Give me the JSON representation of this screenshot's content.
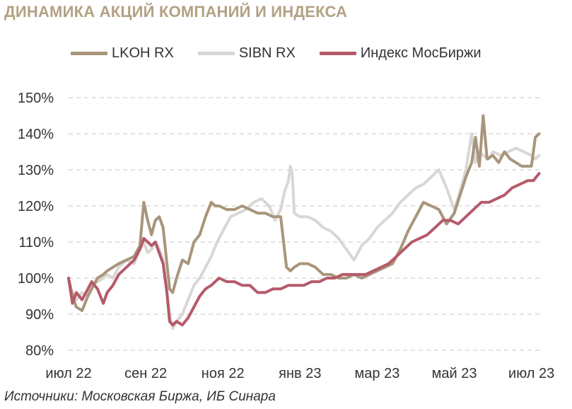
{
  "title": "ДИНАМИКА АКЦИЙ КОМПАНИЙ И ИНДЕКСА",
  "source": "Источники: Московская Биржа, ИБ Синара",
  "chart_data": {
    "type": "line",
    "ylim": [
      80,
      150
    ],
    "ytick_values": [
      80,
      90,
      100,
      110,
      120,
      130,
      140,
      150
    ],
    "ytick_labels": [
      "80%",
      "90%",
      "100%",
      "110%",
      "120%",
      "130%",
      "140%",
      "150%"
    ],
    "xlim": [
      0,
      12.3
    ],
    "xtick_positions": [
      0,
      2,
      4,
      6,
      8,
      10,
      12
    ],
    "xtick_labels": [
      "июл 22",
      "сен 22",
      "ноя 22",
      "янв 23",
      "мар 23",
      "май 23",
      "июл 23"
    ],
    "grid": true,
    "legend_position": "top",
    "series": [
      {
        "name": "LKOH RX",
        "color": "#a8957b",
        "x": [
          0,
          0.1,
          0.2,
          0.35,
          0.5,
          0.6,
          0.75,
          0.9,
          1.0,
          1.15,
          1.3,
          1.5,
          1.7,
          1.85,
          1.95,
          2.05,
          2.15,
          2.25,
          2.35,
          2.45,
          2.55,
          2.62,
          2.7,
          2.8,
          2.95,
          3.1,
          3.25,
          3.4,
          3.55,
          3.7,
          3.8,
          3.9,
          4.1,
          4.3,
          4.5,
          4.7,
          4.9,
          5.1,
          5.3,
          5.5,
          5.65,
          5.75,
          5.85,
          6.0,
          6.2,
          6.4,
          6.6,
          6.8,
          7.0,
          7.2,
          7.4,
          7.6,
          7.8,
          8.0,
          8.2,
          8.4,
          8.6,
          8.8,
          9.0,
          9.2,
          9.4,
          9.6,
          9.8,
          10.0,
          10.15,
          10.3,
          10.45,
          10.55,
          10.65,
          10.75,
          10.85,
          11.0,
          11.15,
          11.3,
          11.45,
          11.6,
          11.75,
          11.9,
          12.0,
          12.1,
          12.2
        ],
        "y": [
          100,
          95,
          92,
          91,
          95,
          97,
          100,
          101,
          102,
          103,
          104,
          105,
          106,
          109,
          121,
          116,
          112,
          116,
          117,
          114,
          104,
          97,
          96,
          100,
          105,
          104,
          110,
          112,
          117,
          121,
          120,
          120,
          119,
          119,
          120,
          119,
          118,
          118,
          117,
          117,
          103,
          102,
          103,
          104,
          104,
          103,
          101,
          101,
          100,
          100,
          101,
          100,
          101,
          102,
          103,
          104,
          108,
          113,
          117,
          121,
          120,
          119,
          115,
          118,
          123,
          128,
          132,
          139,
          131,
          145,
          133,
          134,
          132,
          135,
          133,
          132,
          131,
          131,
          131,
          139,
          140
        ]
      },
      {
        "name": "SIBN RX",
        "color": "#d9d7d3",
        "x": [
          0,
          0.1,
          0.2,
          0.35,
          0.5,
          0.6,
          0.75,
          0.9,
          1.0,
          1.15,
          1.3,
          1.5,
          1.7,
          1.85,
          1.95,
          2.05,
          2.15,
          2.25,
          2.35,
          2.45,
          2.55,
          2.62,
          2.7,
          2.8,
          2.95,
          3.1,
          3.25,
          3.4,
          3.55,
          3.7,
          3.85,
          4.0,
          4.2,
          4.4,
          4.6,
          4.8,
          5.0,
          5.2,
          5.35,
          5.5,
          5.6,
          5.7,
          5.75,
          5.8,
          5.85,
          6.0,
          6.2,
          6.4,
          6.6,
          6.8,
          7.0,
          7.2,
          7.4,
          7.6,
          7.8,
          8.0,
          8.2,
          8.4,
          8.6,
          8.8,
          9.0,
          9.2,
          9.4,
          9.6,
          9.8,
          10.0,
          10.15,
          10.3,
          10.45,
          10.55,
          10.65,
          10.75,
          10.9,
          11.0,
          11.2,
          11.4,
          11.6,
          11.8,
          12.0,
          12.1,
          12.2
        ],
        "y": [
          99,
          96,
          94,
          96,
          95,
          98,
          99,
          100,
          101,
          100,
          103,
          105,
          104,
          108,
          110,
          107,
          108,
          110,
          108,
          105,
          96,
          90,
          86,
          88,
          90,
          94,
          98,
          100,
          103,
          106,
          110,
          113,
          117,
          118,
          119,
          121,
          122,
          120,
          116,
          119,
          124,
          127,
          131,
          129,
          118,
          117,
          117,
          116,
          114,
          113,
          111,
          108,
          105,
          109,
          111,
          114,
          116,
          118,
          121,
          123,
          125,
          126,
          128,
          130,
          125,
          119,
          124,
          130,
          140,
          132,
          135,
          134,
          133,
          135,
          134,
          135,
          136,
          135,
          134,
          133,
          134
        ]
      },
      {
        "name": "Индекс МосБиржи",
        "color": "#b55a6a",
        "x": [
          0,
          0.1,
          0.2,
          0.35,
          0.5,
          0.6,
          0.75,
          0.9,
          1.0,
          1.15,
          1.3,
          1.5,
          1.7,
          1.85,
          1.95,
          2.05,
          2.15,
          2.25,
          2.35,
          2.45,
          2.55,
          2.62,
          2.7,
          2.8,
          2.95,
          3.1,
          3.25,
          3.4,
          3.55,
          3.7,
          3.9,
          4.1,
          4.3,
          4.5,
          4.7,
          4.9,
          5.1,
          5.3,
          5.5,
          5.7,
          5.9,
          6.1,
          6.3,
          6.5,
          6.7,
          6.9,
          7.1,
          7.3,
          7.5,
          7.7,
          7.9,
          8.1,
          8.3,
          8.5,
          8.7,
          8.9,
          9.1,
          9.3,
          9.5,
          9.7,
          9.9,
          10.1,
          10.3,
          10.5,
          10.7,
          10.9,
          11.1,
          11.3,
          11.5,
          11.7,
          11.9,
          12.05,
          12.2
        ],
        "y": [
          100,
          93,
          96,
          94,
          97,
          99,
          97,
          93,
          96,
          98,
          101,
          103,
          105,
          108,
          111,
          110,
          109,
          110,
          107,
          104,
          96,
          88,
          87,
          88,
          87,
          89,
          92,
          95,
          97,
          98,
          100,
          99,
          99,
          98,
          98,
          96,
          96,
          97,
          97,
          98,
          98,
          98,
          99,
          99,
          100,
          100,
          101,
          101,
          101,
          101,
          102,
          103,
          104,
          106,
          108,
          110,
          111,
          112,
          114,
          116,
          116,
          115,
          117,
          119,
          121,
          121,
          122,
          123,
          125,
          126,
          127,
          127,
          129
        ]
      }
    ]
  }
}
